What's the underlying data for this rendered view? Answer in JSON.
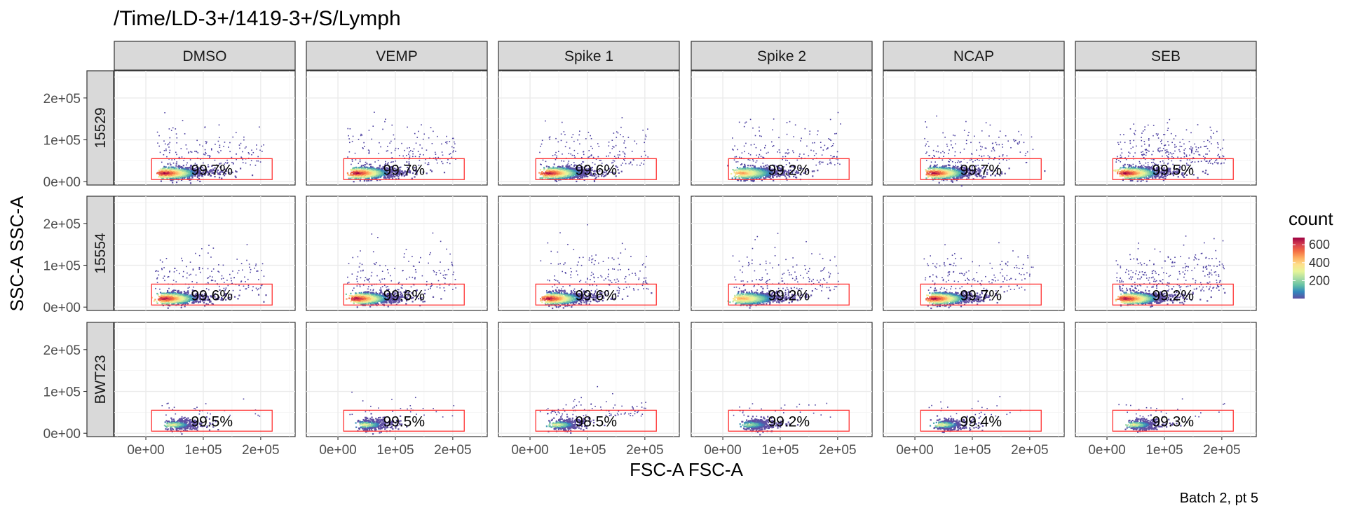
{
  "title": "/Time/LD-3+/1419-3+/S/Lymph",
  "caption": "Batch 2, pt 5",
  "chart_data": {
    "type": "scatter",
    "subtype": "faceted density scatter (flow cytometry gate)",
    "xlabel": "FSC-A FSC-A",
    "ylabel": "SSC-A SSC-A",
    "xlim": [
      -55000,
      260000
    ],
    "ylim": [
      -8000,
      265000
    ],
    "x_ticks": [
      0,
      100000,
      200000
    ],
    "x_tick_labels": [
      "0e+00",
      "1e+05",
      "2e+05"
    ],
    "y_ticks": [
      0,
      100000,
      200000
    ],
    "y_tick_labels": [
      "0e+00",
      "1e+05",
      "2e+05"
    ],
    "columns": [
      "DMSO",
      "VEMP",
      "Spike 1",
      "Spike 2",
      "NCAP",
      "SEB"
    ],
    "rows": [
      "15529",
      "15554",
      "BWT23"
    ],
    "gate": {
      "x": [
        10000,
        220000
      ],
      "y": [
        5000,
        55000
      ]
    },
    "gate_percent": [
      [
        "99.7%",
        "99.7%",
        "99.6%",
        "99.2%",
        "99.7%",
        "99.5%"
      ],
      [
        "99.6%",
        "99.6%",
        "99.6%",
        "99.2%",
        "99.7%",
        "99.2%"
      ],
      [
        "99.5%",
        "99.5%",
        "98.5%",
        "99.2%",
        "99.4%",
        "99.3%"
      ]
    ],
    "legend": {
      "title": "count",
      "ticks": [
        200,
        400,
        600
      ],
      "tick_labels": [
        "200",
        "400",
        "600"
      ],
      "range": [
        0,
        680
      ],
      "colors": [
        "#5e4fa2",
        "#3288bd",
        "#66c2a5",
        "#abdda4",
        "#e6f598",
        "#fee08b",
        "#fdae61",
        "#f46d43",
        "#d53e4f",
        "#9e0142"
      ],
      "position": "right"
    },
    "grid": true
  }
}
